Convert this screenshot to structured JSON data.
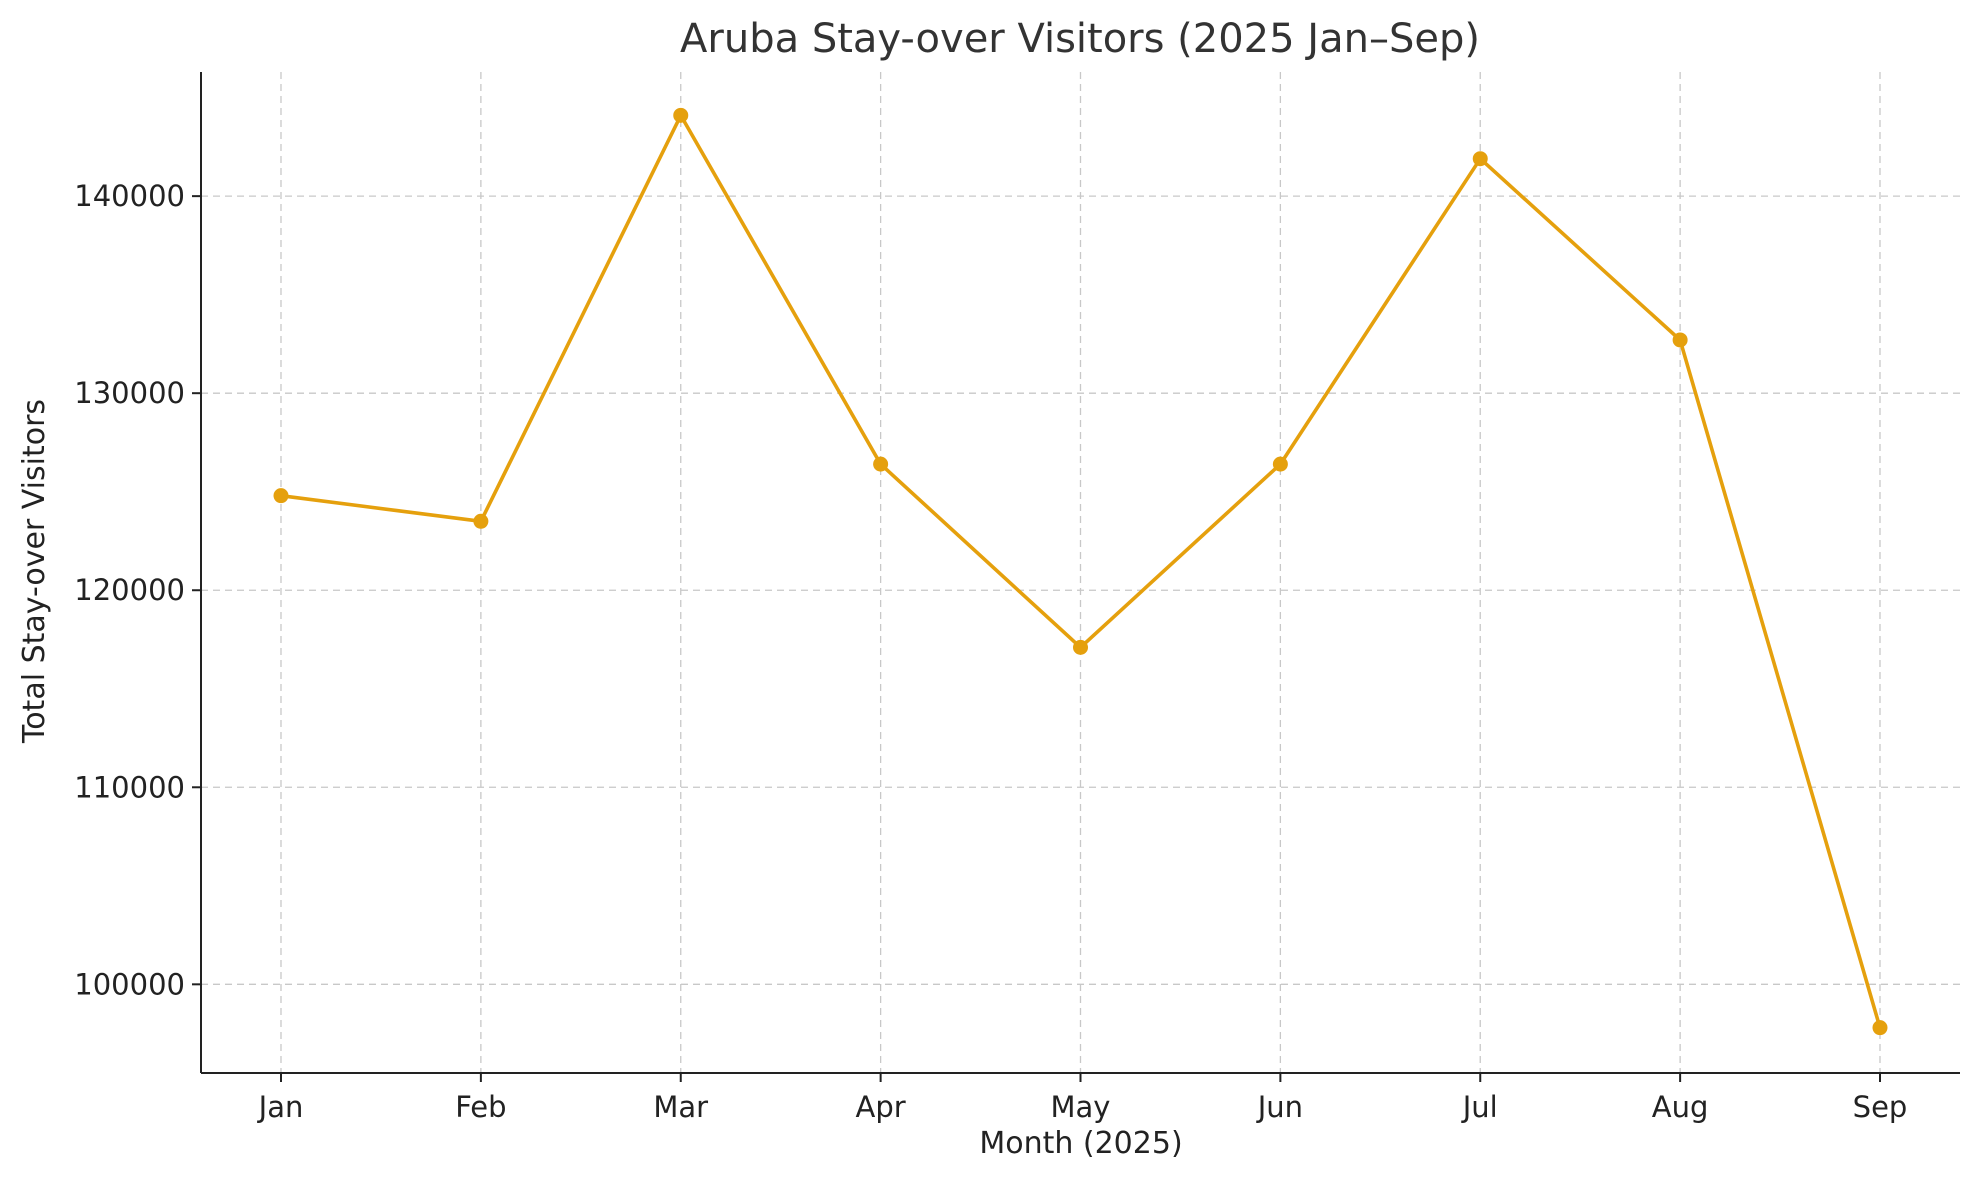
{
  "chart_data": {
    "type": "line",
    "title": "Aruba Stay-over Visitors (2025 Jan–Sep)",
    "xlabel": "Month (2025)",
    "ylabel": "Total Stay-over Visitors",
    "categories": [
      "Jan",
      "Feb",
      "Mar",
      "Apr",
      "May",
      "Jun",
      "Jul",
      "Aug",
      "Sep"
    ],
    "series": [
      {
        "values": [
          124800,
          123500,
          144100,
          126400,
          117100,
          126400,
          141900,
          132700,
          97800
        ],
        "color": "#E5A00D"
      }
    ],
    "yticks": [
      100000,
      110000,
      120000,
      130000,
      140000
    ],
    "ylim": [
      95500,
      146300
    ],
    "grid": true,
    "legend": "none"
  }
}
